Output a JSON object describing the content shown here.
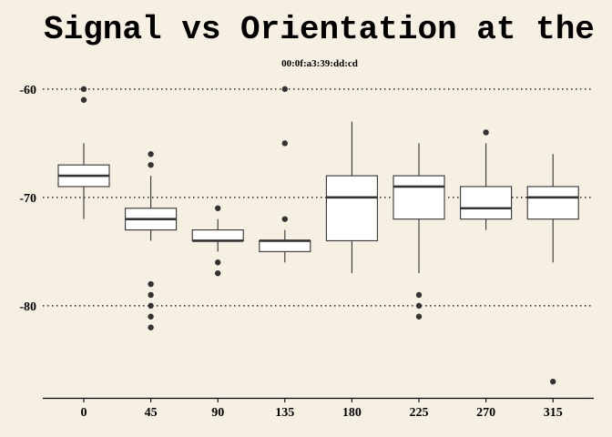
{
  "chart_data": {
    "type": "boxplot",
    "title": "Signal vs Orientation at the",
    "subtitle": "00:0f:a3:39:dd:cd",
    "xlabel": "",
    "ylabel": "",
    "categories": [
      "0",
      "45",
      "90",
      "135",
      "180",
      "225",
      "270",
      "315"
    ],
    "yticks": [
      "-60",
      "-70",
      "-80"
    ],
    "ytick_values": [
      -60,
      -70,
      -80
    ],
    "ylim": [
      -88.5,
      -58.5
    ],
    "grid": "horizontal-dotted",
    "boxes": [
      {
        "category": "0",
        "whisker_low": -72,
        "q1": -69,
        "median": -68,
        "q3": -67,
        "whisker_high": -65,
        "outliers": [
          -60,
          -61
        ]
      },
      {
        "category": "45",
        "whisker_low": -74,
        "q1": -73,
        "median": -72,
        "q3": -71,
        "whisker_high": -68,
        "outliers": [
          -66,
          -67,
          -78,
          -79,
          -80,
          -81,
          -82
        ]
      },
      {
        "category": "90",
        "whisker_low": -75,
        "q1": -74,
        "median": -74,
        "q3": -73,
        "whisker_high": -72,
        "outliers": [
          -71,
          -76,
          -77
        ]
      },
      {
        "category": "135",
        "whisker_low": -76,
        "q1": -75,
        "median": -74,
        "q3": -74,
        "whisker_high": -73,
        "outliers": [
          -60,
          -65,
          -72
        ]
      },
      {
        "category": "180",
        "whisker_low": -77,
        "q1": -74,
        "median": -70,
        "q3": -68,
        "whisker_high": -63,
        "outliers": []
      },
      {
        "category": "225",
        "whisker_low": -77,
        "q1": -72,
        "median": -69,
        "q3": -68,
        "whisker_high": -65,
        "outliers": [
          -79,
          -80,
          -81
        ]
      },
      {
        "category": "270",
        "whisker_low": -73,
        "q1": -72,
        "median": -71,
        "q3": -69,
        "whisker_high": -65,
        "outliers": [
          -64
        ]
      },
      {
        "category": "315",
        "whisker_low": -76,
        "q1": -72,
        "median": -70,
        "q3": -69,
        "whisker_high": -66,
        "outliers": [
          -87
        ]
      }
    ],
    "colors": {
      "background": "#f6f0e2",
      "box_fill": "#ffffff",
      "stroke": "#333333",
      "grid": "#000000"
    }
  }
}
